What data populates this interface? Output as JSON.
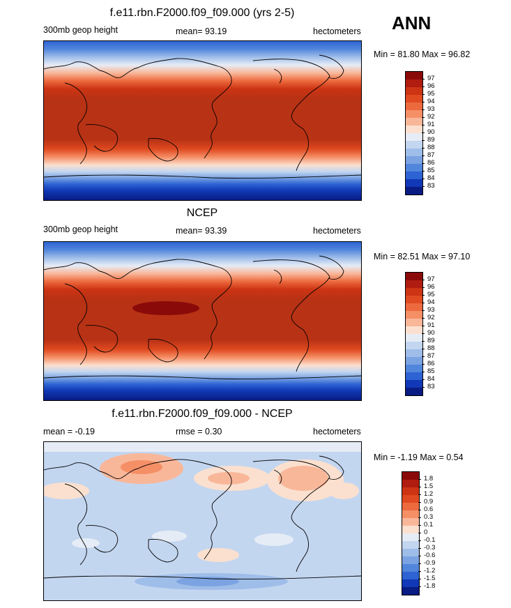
{
  "season": "ANN",
  "panels": [
    {
      "title": "f.e11.rbn.F2000.f09_f09.000 (yrs 2-5)",
      "left_label": "300mb geop height",
      "mid_label": "mean=  93.19",
      "units": "hectometers",
      "minmax": "Min =  81.80 Max =  96.82",
      "colorbar_labels": [
        "97",
        "96",
        "95",
        "94",
        "93",
        "92",
        "91",
        "90",
        "89",
        "88",
        "87",
        "86",
        "85",
        "84",
        "83"
      ]
    },
    {
      "title": "NCEP",
      "left_label": "300mb geop height",
      "mid_label": "mean=  93.39",
      "units": "hectometers",
      "minmax": "Min =  82.51 Max =  97.10",
      "colorbar_labels": [
        "97",
        "96",
        "95",
        "94",
        "93",
        "92",
        "91",
        "90",
        "89",
        "88",
        "87",
        "86",
        "85",
        "84",
        "83"
      ]
    },
    {
      "title": "f.e11.rbn.F2000.f09_f09.000 - NCEP",
      "left_label": "mean =  -0.19",
      "mid_label": "rmse =   0.30",
      "units": "hectometers",
      "minmax": "Min =  -1.19 Max =   0.54",
      "colorbar_labels": [
        "1.8",
        "1.5",
        "1.2",
        "0.9",
        "0.6",
        "0.3",
        "0.1",
        "0",
        "-0.1",
        "-0.3",
        "-0.6",
        "-0.9",
        "-1.2",
        "-1.5",
        "-1.8"
      ]
    }
  ],
  "colors": {
    "scale": [
      "#8a0a0a",
      "#b01c0f",
      "#cc3414",
      "#e04a20",
      "#ec6a3e",
      "#f58f66",
      "#f9b79a",
      "#fbe0cf",
      "#e6ecf6",
      "#c3d6f0",
      "#9fbde9",
      "#7ba3e2",
      "#5286dc",
      "#2d63d2",
      "#1138b6",
      "#081c83"
    ],
    "land_outline": "#000000"
  }
}
